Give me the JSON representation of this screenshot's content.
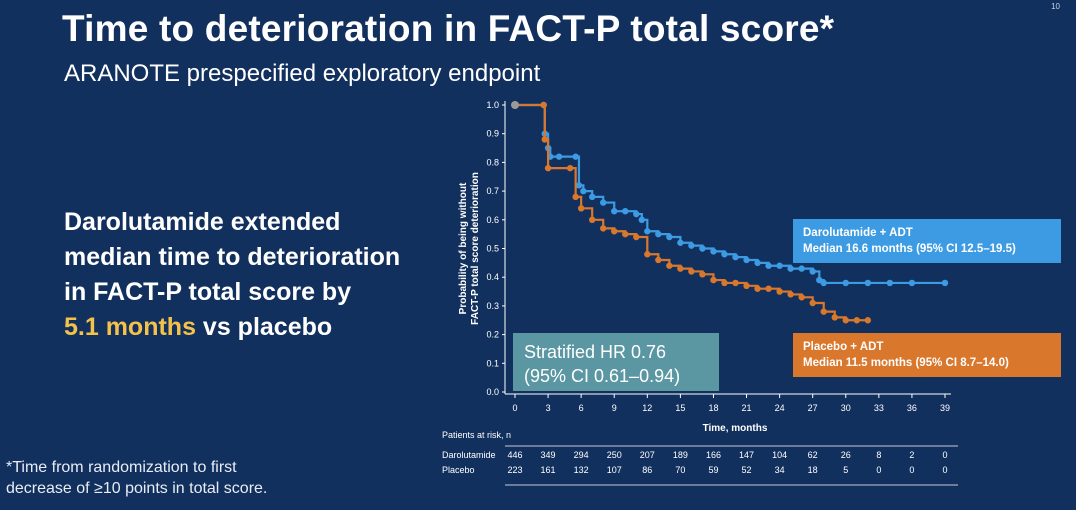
{
  "slide": {
    "page_number": "10",
    "title": "Time to deterioration in FACT-P total score*",
    "subtitle": "ARANOTE prespecified exploratory endpoint",
    "takeaway": {
      "line1": "Darolutamide extended",
      "line2": "median time to deterioration",
      "line3": "in FACT-P total score by",
      "highlight": "5.1 months",
      "line4_rest": " vs placebo"
    },
    "footnote": {
      "line1": "*Time from randomization to first",
      "line2": "decrease of ≥10 points in total score."
    },
    "colors": {
      "background": "#12305e",
      "darolutamide": "#3d9be3",
      "placebo": "#d9782d",
      "hr_box": "#5a97a3",
      "highlight": "#f4c24a"
    }
  },
  "chart_data": {
    "type": "line",
    "xlabel": "Time, months",
    "ylabel_line1": "Probability of being without",
    "ylabel_line2": "FACT-P total score deterioration",
    "xlim": [
      0,
      39
    ],
    "ylim": [
      0,
      1.0
    ],
    "x_ticks": [
      0,
      3,
      6,
      9,
      12,
      15,
      18,
      21,
      24,
      27,
      30,
      33,
      36,
      39
    ],
    "y_ticks": [
      "0.0",
      "0.1",
      "0.2",
      "0.3",
      "0.4",
      "0.5",
      "0.6",
      "0.7",
      "0.8",
      "0.9",
      "1.0"
    ],
    "series": [
      {
        "name": "Darolutamide + ADT",
        "label_line1": "Darolutamide + ADT",
        "label_line2": "Median 16.6 months (95% CI 12.5–19.5)",
        "x": [
          0,
          2.6,
          2.7,
          3.0,
          3.2,
          4.0,
          5.5,
          5.8,
          6.2,
          7.0,
          8.0,
          9.0,
          10.0,
          11.0,
          11.5,
          12.0,
          13.0,
          14.0,
          15.0,
          16.0,
          17.0,
          18.0,
          19.0,
          20.0,
          21.0,
          22.0,
          23.0,
          24.0,
          25.0,
          26.0,
          27.0,
          27.6,
          28.0,
          30.0,
          32.0,
          34.0,
          36.0,
          39.0
        ],
        "y": [
          1.0,
          1.0,
          0.9,
          0.85,
          0.82,
          0.82,
          0.82,
          0.72,
          0.7,
          0.68,
          0.66,
          0.63,
          0.63,
          0.62,
          0.6,
          0.56,
          0.55,
          0.54,
          0.52,
          0.51,
          0.5,
          0.49,
          0.48,
          0.47,
          0.46,
          0.45,
          0.44,
          0.44,
          0.43,
          0.43,
          0.42,
          0.39,
          0.38,
          0.38,
          0.38,
          0.38,
          0.38,
          0.38
        ]
      },
      {
        "name": "Placebo + ADT",
        "label_line1": "Placebo + ADT",
        "label_line2": "Median 11.5 months (95% CI 8.7–14.0)",
        "x": [
          0,
          2.6,
          2.7,
          3.0,
          5.0,
          5.5,
          6.0,
          7.0,
          8.0,
          9.0,
          10.0,
          11.0,
          12.0,
          13.0,
          14.0,
          15.0,
          16.0,
          17.0,
          18.0,
          19.0,
          20.0,
          21.0,
          22.0,
          23.0,
          24.0,
          25.0,
          26.0,
          27.0,
          28.0,
          29.0,
          30.0,
          31.0,
          32.0
        ],
        "y": [
          1.0,
          1.0,
          0.88,
          0.78,
          0.78,
          0.68,
          0.64,
          0.6,
          0.57,
          0.56,
          0.55,
          0.54,
          0.48,
          0.46,
          0.44,
          0.43,
          0.42,
          0.41,
          0.39,
          0.38,
          0.38,
          0.37,
          0.36,
          0.36,
          0.35,
          0.34,
          0.33,
          0.31,
          0.28,
          0.26,
          0.25,
          0.25,
          0.25
        ]
      }
    ],
    "annotation": {
      "line1": "Stratified HR 0.76",
      "line2": "(95% CI 0.61–0.94)"
    },
    "risk_table": {
      "title": "Patients at risk, n",
      "rows": [
        {
          "label": "Darolutamide",
          "values": [
            "446",
            "349",
            "294",
            "250",
            "207",
            "189",
            "166",
            "147",
            "104",
            "62",
            "26",
            "8",
            "2",
            "0"
          ]
        },
        {
          "label": "Placebo",
          "values": [
            "223",
            "161",
            "132",
            "107",
            "86",
            "70",
            "59",
            "52",
            "34",
            "18",
            "5",
            "0",
            "0",
            "0"
          ]
        }
      ]
    }
  }
}
